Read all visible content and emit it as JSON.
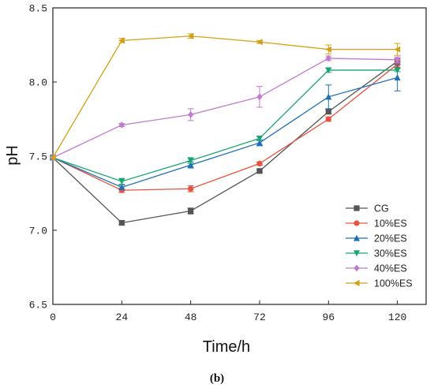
{
  "chart_data": {
    "type": "line",
    "xlabel": "Time/h",
    "ylabel": "pH",
    "caption": "(b)",
    "x": [
      0,
      24,
      48,
      72,
      96,
      120
    ],
    "xticks": [
      "0",
      "24",
      "48",
      "72",
      "96",
      "120"
    ],
    "yticks": [
      "6.5",
      "7.0",
      "7.5",
      "8.0",
      "8.5"
    ],
    "xlim": [
      0,
      130
    ],
    "ylim": [
      6.5,
      8.5
    ],
    "legend_position": "bottom-right",
    "grid": false,
    "series": [
      {
        "name": "CG",
        "color": "#555555",
        "marker": "square",
        "values": [
          7.49,
          7.05,
          7.13,
          7.4,
          7.8,
          8.14
        ],
        "errors": [
          0,
          0.015,
          0.02,
          0.01,
          0.015,
          0.02
        ]
      },
      {
        "name": "10%ES",
        "color": "#e8533f",
        "marker": "circle",
        "values": [
          7.49,
          7.27,
          7.28,
          7.45,
          7.75,
          8.12
        ],
        "errors": [
          0,
          0.015,
          0.02,
          0.01,
          0.015,
          0.02
        ]
      },
      {
        "name": "20%ES",
        "color": "#1f6fb5",
        "marker": "triangle-up",
        "values": [
          7.49,
          7.29,
          7.44,
          7.59,
          7.9,
          8.03
        ],
        "errors": [
          0,
          0.015,
          0.02,
          0.02,
          0.08,
          0.09
        ]
      },
      {
        "name": "30%ES",
        "color": "#17a673",
        "marker": "triangle-down",
        "values": [
          7.49,
          7.33,
          7.47,
          7.62,
          8.08,
          8.08
        ],
        "errors": [
          0,
          0.02,
          0.02,
          0.015,
          0.015,
          0.01
        ]
      },
      {
        "name": "40%ES",
        "color": "#c27ad1",
        "marker": "diamond",
        "values": [
          7.49,
          7.71,
          7.78,
          7.9,
          8.16,
          8.15
        ],
        "errors": [
          0,
          0.01,
          0.04,
          0.07,
          0.015,
          0.02
        ]
      },
      {
        "name": "100%ES",
        "color": "#d4a017",
        "marker": "triangle-left",
        "values": [
          7.49,
          8.28,
          8.31,
          8.27,
          8.22,
          8.22
        ],
        "errors": [
          0,
          0.015,
          0.015,
          0.01,
          0.03,
          0.04
        ]
      }
    ]
  }
}
